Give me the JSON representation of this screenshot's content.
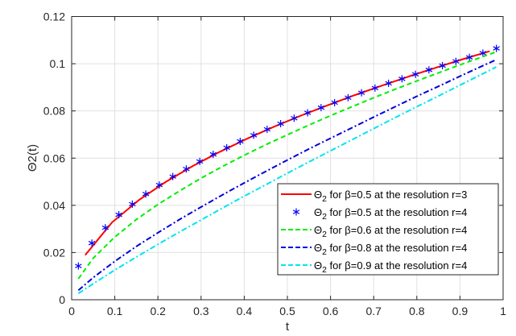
{
  "chart_data": {
    "type": "line",
    "xlabel": "t",
    "ylabel": "Θ2(t)",
    "xlim": [
      0,
      1
    ],
    "ylim": [
      0,
      0.12
    ],
    "xticks": [
      0,
      0.1,
      0.2,
      0.3,
      0.4,
      0.5,
      0.6,
      0.7,
      0.8,
      0.9,
      1
    ],
    "xtick_labels": [
      "0",
      "0.1",
      "0.2",
      "0.3",
      "0.4",
      "0.5",
      "0.6",
      "0.7",
      "0.8",
      "0.9",
      "1"
    ],
    "yticks": [
      0,
      0.02,
      0.04,
      0.06,
      0.08,
      0.1,
      0.12
    ],
    "ytick_labels": [
      "0",
      "0.02",
      "0.04",
      "0.06",
      "0.08",
      "0.1",
      "0.12"
    ],
    "grid": true,
    "legend_placement": "lower-right",
    "series": [
      {
        "name": "Θ2 for β=0.5 at the resolution r=3",
        "color": "#ff0000",
        "style": "solid",
        "marker": "none",
        "x": [
          0.0313,
          0.0938,
          0.1563,
          0.2188,
          0.2813,
          0.3438,
          0.4063,
          0.4688,
          0.5313,
          0.5938,
          0.6563,
          0.7188,
          0.7813,
          0.8438,
          0.9063,
          0.9688
        ],
        "y": [
          0.0189,
          0.0328,
          0.0423,
          0.05,
          0.0567,
          0.0627,
          0.0682,
          0.0733,
          0.078,
          0.0824,
          0.0867,
          0.0907,
          0.0946,
          0.0983,
          0.1019,
          0.1053
        ]
      },
      {
        "name": "Θ2 for β=0.5 at the resolution r=4",
        "color": "#0000ff",
        "style": "none",
        "marker": "asterisk",
        "x": [
          0.0156,
          0.0469,
          0.0781,
          0.1094,
          0.1406,
          0.1719,
          0.2031,
          0.2344,
          0.2656,
          0.2969,
          0.3281,
          0.3594,
          0.3906,
          0.4219,
          0.4531,
          0.4844,
          0.5156,
          0.5469,
          0.5781,
          0.6094,
          0.6406,
          0.6719,
          0.7031,
          0.7344,
          0.7656,
          0.7969,
          0.8281,
          0.8594,
          0.8906,
          0.9219,
          0.9531,
          0.9844
        ],
        "y": [
          0.0143,
          0.024,
          0.0305,
          0.036,
          0.0405,
          0.0448,
          0.0486,
          0.0522,
          0.0554,
          0.0586,
          0.0616,
          0.0644,
          0.0671,
          0.0697,
          0.0722,
          0.0746,
          0.0769,
          0.0792,
          0.0814,
          0.0835,
          0.0856,
          0.0877,
          0.0897,
          0.0917,
          0.0936,
          0.0955,
          0.0974,
          0.0992,
          0.101,
          0.1027,
          0.1045,
          0.1065
        ]
      },
      {
        "name": "Θ2 for β=0.6 at the resolution r=4",
        "color": "#00ee00",
        "style": "dashed",
        "marker": "none",
        "x": [
          0.0156,
          0.05,
          0.1,
          0.15,
          0.2,
          0.25,
          0.3,
          0.35,
          0.4,
          0.45,
          0.5,
          0.55,
          0.6,
          0.65,
          0.7,
          0.75,
          0.8,
          0.85,
          0.9,
          0.95,
          0.984
        ],
        "y": [
          0.0089,
          0.0176,
          0.0266,
          0.034,
          0.0404,
          0.0461,
          0.0515,
          0.0565,
          0.0612,
          0.0657,
          0.0699,
          0.074,
          0.078,
          0.0818,
          0.0856,
          0.0892,
          0.0927,
          0.0961,
          0.0995,
          0.1028,
          0.105
        ]
      },
      {
        "name": "Θ2 for β=0.8 at the resolution r=4",
        "color": "#0000dd",
        "style": "dashdot",
        "marker": "none",
        "x": [
          0.0156,
          0.05,
          0.1,
          0.15,
          0.2,
          0.25,
          0.3,
          0.35,
          0.4,
          0.45,
          0.5,
          0.55,
          0.6,
          0.65,
          0.7,
          0.75,
          0.8,
          0.85,
          0.9,
          0.95,
          0.984
        ],
        "y": [
          0.004,
          0.0094,
          0.0163,
          0.0226,
          0.0284,
          0.034,
          0.0393,
          0.0445,
          0.0495,
          0.0544,
          0.0592,
          0.0639,
          0.0684,
          0.0729,
          0.0774,
          0.0818,
          0.0862,
          0.0904,
          0.0947,
          0.0989,
          0.1017
        ]
      },
      {
        "name": "Θ2 for β=0.9 at the resolution r=4",
        "color": "#00e5ee",
        "style": "dashdot",
        "marker": "none",
        "x": [
          0.0156,
          0.05,
          0.1,
          0.15,
          0.2,
          0.25,
          0.3,
          0.35,
          0.4,
          0.45,
          0.5,
          0.55,
          0.6,
          0.65,
          0.7,
          0.75,
          0.8,
          0.85,
          0.9,
          0.95,
          0.984
        ],
        "y": [
          0.0027,
          0.0068,
          0.0126,
          0.0181,
          0.0235,
          0.0287,
          0.0338,
          0.0389,
          0.0439,
          0.0487,
          0.0536,
          0.0584,
          0.0631,
          0.0678,
          0.0725,
          0.0772,
          0.0818,
          0.0863,
          0.0909,
          0.0955,
          0.0986
        ]
      }
    ]
  }
}
